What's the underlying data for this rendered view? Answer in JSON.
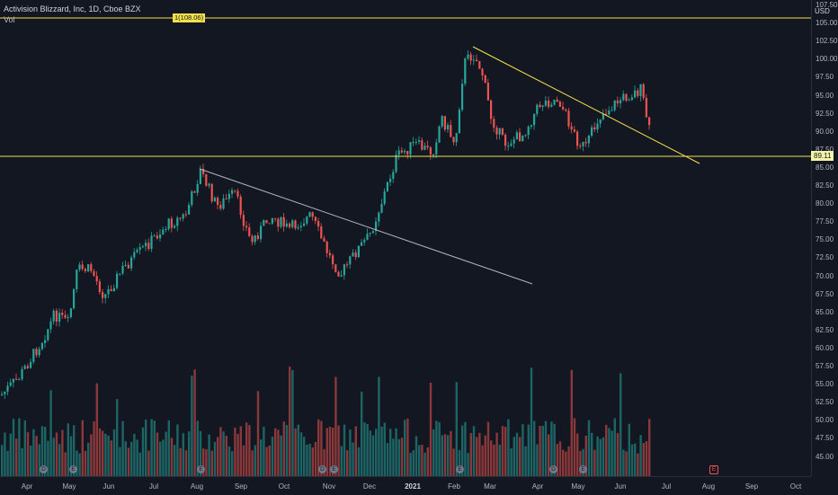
{
  "legend": {
    "title": "Activision Blizzard, Inc, 1D, Cboe BZX",
    "volume_label": "Vol"
  },
  "price_axis": {
    "currency": "USD",
    "ticks": [
      "107.50",
      "105.00",
      "102.50",
      "100.00",
      "97.50",
      "95.00",
      "92.50",
      "90.00",
      "87.50",
      "85.00",
      "82.50",
      "80.00",
      "77.50",
      "75.00",
      "72.50",
      "70.00",
      "67.50",
      "65.00",
      "62.50",
      "60.00",
      "57.50",
      "55.00",
      "52.50",
      "50.00",
      "47.50",
      "45.00"
    ],
    "current_price": "89.11"
  },
  "time_axis": {
    "ticks": [
      "Apr",
      "May",
      "Jun",
      "Jul",
      "Aug",
      "Sep",
      "Oct",
      "Nov",
      "Dec",
      "2021",
      "Feb",
      "Mar",
      "Apr",
      "May",
      "Jun",
      "Jul",
      "Aug",
      "Sep",
      "Oct"
    ]
  },
  "horizontal_lines": {
    "resistance_label": "1(108.06)",
    "resistance_value": 108.06,
    "support_value": 89.11
  },
  "events": {
    "dividend_symbol": "D",
    "earnings_symbol": "E",
    "future_earnings_symbol": "E"
  },
  "colors": {
    "background": "#131722",
    "up": "#26a69a",
    "down": "#ef5350",
    "trendline_yellow": "#f5e24a",
    "trendline_white": "#b2b5be"
  }
}
